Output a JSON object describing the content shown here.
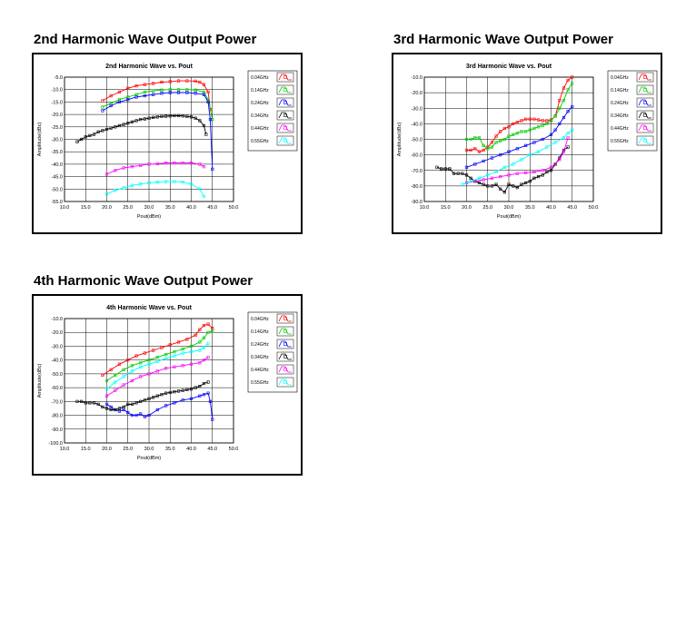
{
  "sections": [
    {
      "title": "2nd Harmonic Wave Output Power"
    },
    {
      "title": "3rd Harmonic Wave Output Power"
    },
    {
      "title": "4th Harmonic Wave Output Power"
    }
  ],
  "series_colors": [
    "#ff0000",
    "#00cc00",
    "#0000ff",
    "#000000",
    "#ff00ff",
    "#00ffff"
  ],
  "chart_data": [
    {
      "type": "line",
      "title": "2nd Harmonic Wave vs. Pout",
      "xlabel": "Pout(dBm)",
      "ylabel": "Amplitude(dBc)",
      "xlim": [
        10,
        50
      ],
      "ylim": [
        -55,
        -5
      ],
      "xticks": [
        "10.0",
        "15.0",
        "20.0",
        "25.0",
        "30.0",
        "35.0",
        "40.0",
        "45.0",
        "50.0"
      ],
      "yticks": [
        "-5.0",
        "-10.0",
        "-15.0",
        "-20.0",
        "-25.0",
        "-30.0",
        "-35.0",
        "-40.0",
        "-45.0",
        "-50.0",
        "-55.0"
      ],
      "grid": true,
      "legend_position": "right",
      "series": [
        {
          "name": "0.04GHz",
          "x": [
            19,
            21,
            23,
            25,
            27,
            29,
            31,
            33,
            35,
            37,
            39,
            41,
            42,
            43,
            44,
            44.5
          ],
          "y": [
            -14.5,
            -12.5,
            -11,
            -9.5,
            -8.5,
            -8,
            -7.5,
            -7,
            -6.8,
            -6.5,
            -6.5,
            -6.6,
            -7,
            -8,
            -11,
            -18
          ]
        },
        {
          "name": "0.14GHz",
          "x": [
            19,
            21,
            23,
            25,
            27,
            29,
            31,
            33,
            35,
            37,
            39,
            41,
            43,
            44,
            45
          ],
          "y": [
            -17,
            -15.5,
            -14,
            -13,
            -12,
            -11,
            -10.5,
            -10.2,
            -10,
            -10,
            -10,
            -10.2,
            -11,
            -14,
            -22
          ]
        },
        {
          "name": "0.24GHz",
          "x": [
            19,
            21,
            23,
            25,
            27,
            29,
            31,
            33,
            35,
            37,
            39,
            41,
            43,
            44,
            44.5,
            45
          ],
          "y": [
            -18.5,
            -16.5,
            -15,
            -14,
            -13,
            -12.5,
            -12,
            -11.5,
            -11.2,
            -11.2,
            -11.2,
            -11.5,
            -12,
            -15,
            -22,
            -42
          ]
        },
        {
          "name": "0.34GHz",
          "x": [
            13,
            14,
            15,
            16,
            17,
            18,
            19,
            20,
            21,
            22,
            23,
            24,
            25,
            26,
            27,
            28,
            29,
            30,
            31,
            32,
            33,
            34,
            35,
            36,
            37,
            38,
            39,
            40,
            41,
            42,
            43,
            43.5
          ],
          "y": [
            -31,
            -30,
            -29,
            -28.5,
            -28,
            -27,
            -26.5,
            -26,
            -25.5,
            -25,
            -24.5,
            -24,
            -23.5,
            -23,
            -22.5,
            -22,
            -21.8,
            -21.5,
            -21.2,
            -21,
            -20.8,
            -20.7,
            -20.6,
            -20.5,
            -20.5,
            -20.6,
            -20.8,
            -21,
            -21.5,
            -22.5,
            -24.5,
            -28
          ]
        },
        {
          "name": "0.44GHz",
          "x": [
            20,
            22,
            24,
            26,
            28,
            30,
            32,
            34,
            36,
            38,
            40,
            42,
            43
          ],
          "y": [
            -44,
            -42.5,
            -41.5,
            -41,
            -40.5,
            -40,
            -39.8,
            -39.5,
            -39.5,
            -39.5,
            -39.5,
            -40,
            -41
          ]
        },
        {
          "name": "0.55GHz",
          "x": [
            20,
            22,
            24,
            26,
            28,
            30,
            32,
            34,
            36,
            38,
            40,
            42,
            43
          ],
          "y": [
            -52,
            -50.5,
            -49.5,
            -48.5,
            -48,
            -47.5,
            -47.2,
            -47,
            -47,
            -47.2,
            -48,
            -50,
            -53
          ]
        }
      ]
    },
    {
      "type": "line",
      "title": "3rd Harmonic Wave vs. Pout",
      "xlabel": "Pout(dBm)",
      "ylabel": "Amplitude(dBc)",
      "xlim": [
        10,
        50
      ],
      "ylim": [
        -90,
        -10
      ],
      "xticks": [
        "10.0",
        "15.0",
        "20.0",
        "25.0",
        "30.0",
        "35.0",
        "40.0",
        "45.0",
        "50.0"
      ],
      "yticks": [
        "-10.0",
        "-20.0",
        "-30.0",
        "-40.0",
        "-50.0",
        "-60.0",
        "-70.0",
        "-80.0",
        "-90.0"
      ],
      "grid": true,
      "legend_position": "right",
      "series": [
        {
          "name": "0.04GHz",
          "x": [
            20,
            21,
            22,
            23,
            24,
            25,
            26,
            27,
            28,
            29,
            30,
            31,
            32,
            33,
            34,
            35,
            36,
            37,
            38,
            39,
            40,
            41,
            42,
            43,
            44,
            45
          ],
          "y": [
            -57,
            -57,
            -56,
            -58,
            -57,
            -55,
            -52,
            -48,
            -45,
            -43,
            -42,
            -40,
            -39,
            -38,
            -37,
            -37,
            -37,
            -37.5,
            -38,
            -38,
            -37.5,
            -35,
            -25,
            -17,
            -12,
            -10
          ]
        },
        {
          "name": "0.14GHz",
          "x": [
            20,
            21,
            22,
            23,
            24,
            25,
            26,
            27,
            28,
            29,
            30,
            31,
            32,
            33,
            34,
            35,
            36,
            37,
            38,
            39,
            40,
            41,
            42,
            43,
            44,
            45
          ],
          "y": [
            -50,
            -50,
            -49,
            -49,
            -54,
            -56,
            -55,
            -52,
            -51,
            -50,
            -48,
            -47,
            -46,
            -45,
            -45,
            -44,
            -43,
            -42,
            -41,
            -40,
            -38,
            -35,
            -30,
            -25,
            -18,
            -14
          ]
        },
        {
          "name": "0.24GHz",
          "x": [
            20,
            22,
            24,
            26,
            28,
            30,
            32,
            34,
            36,
            38,
            40,
            41,
            42,
            43,
            44,
            45
          ],
          "y": [
            -68,
            -66,
            -64,
            -62,
            -60,
            -58,
            -56,
            -54,
            -52,
            -50,
            -47,
            -44,
            -40,
            -36,
            -32,
            -29
          ]
        },
        {
          "name": "0.34GHz",
          "x": [
            13,
            14,
            15,
            16,
            17,
            18,
            19,
            20,
            21,
            22,
            23,
            24,
            25,
            26,
            27,
            28,
            29,
            30,
            31,
            32,
            33,
            34,
            35,
            36,
            37,
            38,
            39,
            40,
            41,
            42,
            43,
            44
          ],
          "y": [
            -68,
            -69,
            -69,
            -69,
            -72,
            -72,
            -72,
            -73,
            -75,
            -77,
            -78,
            -79,
            -80,
            -80,
            -79,
            -82,
            -84,
            -79,
            -80,
            -81,
            -79,
            -78,
            -77,
            -75,
            -74,
            -73,
            -71,
            -70,
            -66,
            -62,
            -57,
            -55
          ]
        },
        {
          "name": "0.44GHz",
          "x": [
            20,
            22,
            24,
            26,
            28,
            30,
            32,
            34,
            36,
            38,
            40,
            42,
            43,
            44
          ],
          "y": [
            -78,
            -77,
            -76,
            -75,
            -74,
            -73,
            -72,
            -71.5,
            -71,
            -70,
            -68,
            -63,
            -58,
            -49
          ]
        },
        {
          "name": "0.55GHz",
          "x": [
            19,
            21,
            23,
            25,
            27,
            29,
            31,
            33,
            35,
            37,
            39,
            41,
            43,
            44,
            45
          ],
          "y": [
            -79,
            -77,
            -75,
            -73,
            -71,
            -68,
            -66,
            -63,
            -60,
            -58,
            -55,
            -52,
            -49,
            -46,
            -44
          ]
        }
      ]
    },
    {
      "type": "line",
      "title": "4th Harmonic Wave vs. Pout",
      "xlabel": "Pout(dBm)",
      "ylabel": "Amplitude(dBc)",
      "xlim": [
        10,
        50
      ],
      "ylim": [
        -100,
        -10
      ],
      "xticks": [
        "10.0",
        "15.0",
        "20.0",
        "25.0",
        "30.0",
        "35.0",
        "40.0",
        "45.0",
        "50.0"
      ],
      "yticks": [
        "-10.0",
        "-20.0",
        "-30.0",
        "-40.0",
        "-50.0",
        "-60.0",
        "-70.0",
        "-80.0",
        "-90.0",
        "-100.0"
      ],
      "grid": true,
      "legend_position": "right",
      "series": [
        {
          "name": "0.04GHz",
          "x": [
            19,
            21,
            23,
            25,
            27,
            29,
            31,
            33,
            35,
            37,
            39,
            41,
            42,
            43,
            44,
            45
          ],
          "y": [
            -51,
            -47,
            -43,
            -40,
            -37,
            -35,
            -33,
            -31,
            -29,
            -27,
            -25,
            -22,
            -18,
            -15,
            -14,
            -17
          ]
        },
        {
          "name": "0.14GHz",
          "x": [
            20,
            22,
            24,
            26,
            28,
            30,
            32,
            34,
            36,
            38,
            40,
            42,
            43,
            44,
            45
          ],
          "y": [
            -55,
            -51,
            -47,
            -44,
            -42,
            -40,
            -38,
            -36,
            -34,
            -32,
            -30,
            -27,
            -24,
            -20,
            -19
          ]
        },
        {
          "name": "0.24GHz",
          "x": [
            20,
            21,
            22,
            23,
            24,
            25,
            26,
            27,
            28,
            29,
            30,
            32,
            34,
            36,
            38,
            40,
            42,
            43,
            44,
            44.5,
            45
          ],
          "y": [
            -72,
            -74,
            -76,
            -77,
            -76,
            -78,
            -80,
            -80,
            -79,
            -81,
            -80,
            -76,
            -73,
            -71,
            -69,
            -68,
            -66,
            -65,
            -64,
            -70,
            -83
          ]
        },
        {
          "name": "0.34GHz",
          "x": [
            13,
            14,
            15,
            16,
            17,
            18,
            19,
            20,
            21,
            22,
            23,
            24,
            25,
            26,
            27,
            28,
            29,
            30,
            31,
            32,
            33,
            34,
            35,
            36,
            37,
            38,
            39,
            40,
            41,
            42,
            43,
            44
          ],
          "y": [
            -70,
            -70,
            -71,
            -71,
            -71,
            -72,
            -74,
            -75,
            -76,
            -76,
            -75,
            -74,
            -72,
            -72,
            -71,
            -70,
            -69,
            -68,
            -67,
            -66,
            -65,
            -64,
            -63.5,
            -63,
            -62.5,
            -62,
            -61.5,
            -61,
            -60,
            -59,
            -57,
            -56
          ]
        },
        {
          "name": "0.44GHz",
          "x": [
            20,
            22,
            24,
            26,
            28,
            30,
            32,
            34,
            36,
            38,
            40,
            42,
            43,
            44
          ],
          "y": [
            -66,
            -62,
            -58,
            -55,
            -52,
            -50,
            -48,
            -46,
            -45,
            -44,
            -43,
            -42,
            -40,
            -38
          ]
        },
        {
          "name": "0.55GHz",
          "x": [
            20,
            22,
            24,
            26,
            28,
            30,
            32,
            34,
            36,
            38,
            40,
            42,
            43,
            44
          ],
          "y": [
            -61,
            -56,
            -52,
            -48,
            -45,
            -43,
            -41,
            -39,
            -37,
            -35,
            -34,
            -33,
            -31,
            -28
          ]
        }
      ]
    }
  ]
}
